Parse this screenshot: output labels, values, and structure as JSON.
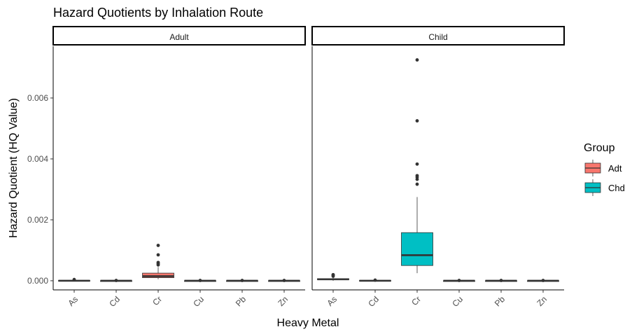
{
  "chart_data": {
    "type": "boxplot",
    "title": "Hazard Quotients by Inhalation Route",
    "xlabel": "Heavy Metal",
    "ylabel": "Hazard Quotient (HQ Value)",
    "ylim": [
      -0.0003,
      0.0077
    ],
    "yticks": [
      0.0,
      0.002,
      0.004,
      0.006
    ],
    "ytick_labels": [
      "0.000",
      "0.002",
      "0.004",
      "0.006"
    ],
    "categories": [
      "As",
      "Cd",
      "Cr",
      "Cu",
      "Pb",
      "Zn"
    ],
    "grid": false,
    "legend": {
      "title": "Group",
      "position": "right",
      "entries": [
        {
          "label": "Adt",
          "color": "#F8766D"
        },
        {
          "label": "Chd",
          "color": "#00BFC4"
        }
      ]
    },
    "panels": [
      {
        "name": "Adult",
        "group": "Adt",
        "color": "#F8766D",
        "boxes": [
          {
            "category": "As",
            "whisker_low": 0.0,
            "q1": 0.0,
            "median": 0.0,
            "q3": 1e-05,
            "whisker_high": 2e-05,
            "outliers": [
              4e-05
            ]
          },
          {
            "category": "Cd",
            "whisker_low": 0.0,
            "q1": 0.0,
            "median": 0.0,
            "q3": 0.0,
            "whisker_high": 0.0,
            "outliers": [
              1e-05
            ]
          },
          {
            "category": "Cr",
            "whisker_low": 5e-05,
            "q1": 0.0001,
            "median": 0.00015,
            "q3": 0.00025,
            "whisker_high": 0.00045,
            "outliers": [
              0.00052,
              0.00056,
              0.0006,
              0.00085,
              0.00116
            ]
          },
          {
            "category": "Cu",
            "whisker_low": 0.0,
            "q1": 0.0,
            "median": 0.0,
            "q3": 0.0,
            "whisker_high": 0.0,
            "outliers": [
              1e-05
            ]
          },
          {
            "category": "Pb",
            "whisker_low": 0.0,
            "q1": 0.0,
            "median": 0.0,
            "q3": 0.0,
            "whisker_high": 0.0,
            "outliers": [
              1e-05
            ]
          },
          {
            "category": "Zn",
            "whisker_low": 0.0,
            "q1": 0.0,
            "median": 0.0,
            "q3": 0.0,
            "whisker_high": 0.0,
            "outliers": [
              1e-05
            ]
          }
        ]
      },
      {
        "name": "Child",
        "group": "Chd",
        "color": "#00BFC4",
        "boxes": [
          {
            "category": "As",
            "whisker_low": 0.0,
            "q1": 3e-05,
            "median": 5e-05,
            "q3": 7e-05,
            "whisker_high": 0.00012,
            "outliers": [
              0.00015,
              0.00018,
              0.0002
            ]
          },
          {
            "category": "Cd",
            "whisker_low": 0.0,
            "q1": 0.0,
            "median": 0.0,
            "q3": 1e-05,
            "whisker_high": 1e-05,
            "outliers": [
              2e-05
            ]
          },
          {
            "category": "Cr",
            "whisker_low": 0.00025,
            "q1": 0.0005,
            "median": 0.00084,
            "q3": 0.00158,
            "whisker_high": 0.00275,
            "outliers": [
              0.00317,
              0.00333,
              0.0034,
              0.00345,
              0.00383,
              0.00525,
              0.00725
            ]
          },
          {
            "category": "Cu",
            "whisker_low": 0.0,
            "q1": 0.0,
            "median": 0.0,
            "q3": 0.0,
            "whisker_high": 0.0,
            "outliers": [
              1e-05
            ]
          },
          {
            "category": "Pb",
            "whisker_low": 0.0,
            "q1": 0.0,
            "median": 0.0,
            "q3": 0.0,
            "whisker_high": 0.0,
            "outliers": [
              1e-05
            ]
          },
          {
            "category": "Zn",
            "whisker_low": 0.0,
            "q1": 0.0,
            "median": 0.0,
            "q3": 0.0,
            "whisker_high": 0.0,
            "outliers": [
              1e-05
            ]
          }
        ]
      }
    ]
  }
}
